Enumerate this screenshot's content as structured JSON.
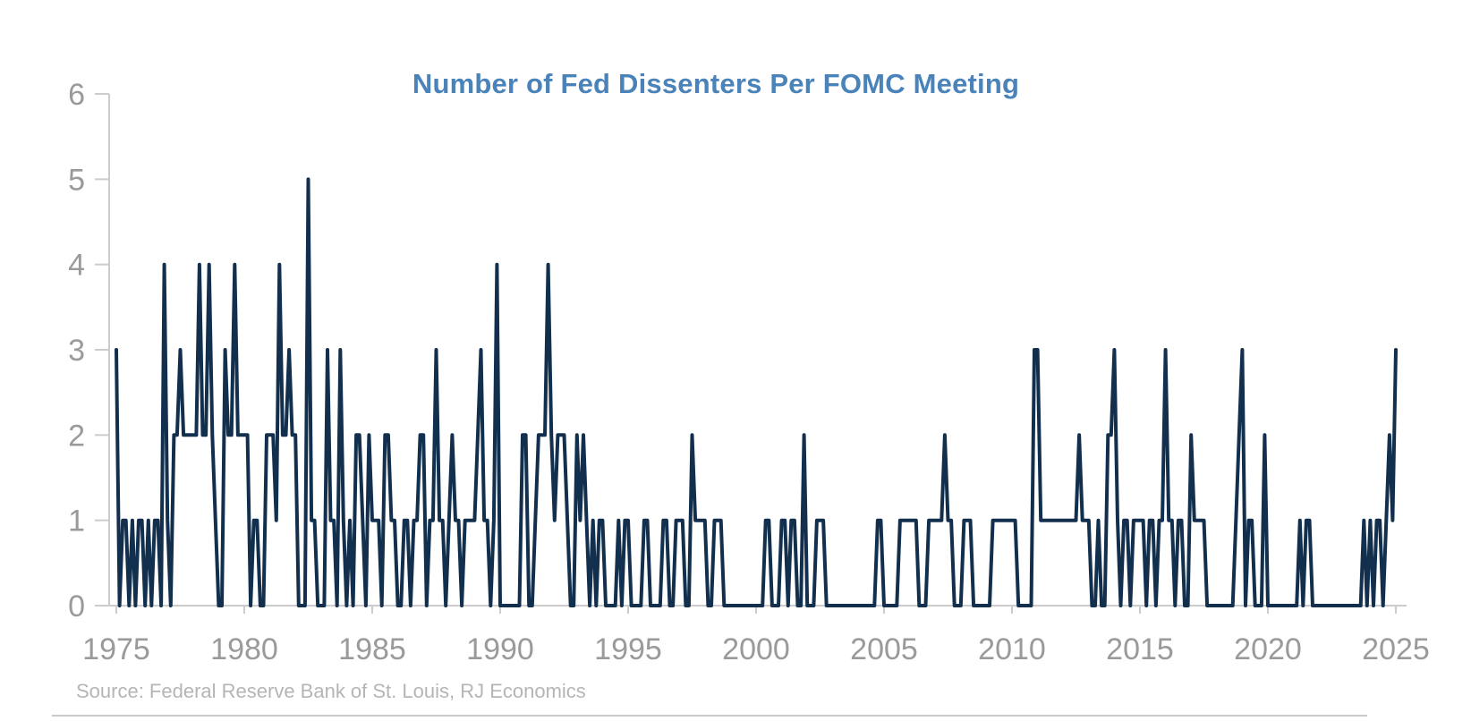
{
  "chart_data": {
    "type": "line",
    "title": "Number of Fed Dissenters Per FOMC Meeting",
    "xlabel": "",
    "ylabel": "",
    "series_name": "Fed dissenters per FOMC meeting",
    "x_ticks": [
      1975,
      1980,
      1985,
      1990,
      1995,
      2000,
      2005,
      2010,
      2015,
      2020,
      2025
    ],
    "y_ticks": [
      0,
      1,
      2,
      3,
      4,
      5,
      6
    ],
    "xlim": [
      1974.7,
      2025.4
    ],
    "ylim": [
      0,
      6
    ],
    "grid": false,
    "legend": false,
    "x_start": 1975.0,
    "x_step": 0.125,
    "values": [
      3,
      0,
      1,
      1,
      0,
      1,
      0,
      1,
      1,
      0,
      1,
      0,
      1,
      1,
      0,
      4,
      1,
      0,
      2,
      2,
      3,
      2,
      2,
      2,
      2,
      2,
      4,
      2,
      2,
      4,
      2,
      1,
      0,
      0,
      3,
      2,
      2,
      4,
      2,
      2,
      2,
      2,
      0,
      1,
      1,
      0,
      0,
      2,
      2,
      2,
      1,
      4,
      2,
      2,
      3,
      2,
      2,
      0,
      0,
      0,
      5,
      1,
      1,
      0,
      0,
      0,
      3,
      1,
      1,
      0,
      3,
      1,
      0,
      1,
      0,
      2,
      2,
      1,
      0,
      2,
      1,
      1,
      1,
      0,
      2,
      2,
      1,
      1,
      0,
      0,
      1,
      1,
      0,
      1,
      1,
      2,
      2,
      0,
      1,
      1,
      3,
      1,
      1,
      0,
      1,
      2,
      1,
      1,
      0,
      1,
      1,
      1,
      1,
      2,
      3,
      1,
      1,
      0,
      1,
      4,
      0,
      0,
      0,
      0,
      0,
      0,
      0,
      2,
      2,
      0,
      0,
      1,
      2,
      2,
      2,
      4,
      2,
      1,
      2,
      2,
      2,
      1,
      0,
      0,
      2,
      1,
      2,
      1,
      0,
      1,
      0,
      1,
      1,
      0,
      0,
      0,
      0,
      1,
      0,
      1,
      1,
      0,
      0,
      0,
      0,
      1,
      1,
      0,
      0,
      0,
      0,
      1,
      1,
      0,
      0,
      1,
      1,
      1,
      0,
      0,
      2,
      1,
      1,
      1,
      1,
      0,
      0,
      1,
      1,
      1,
      0,
      0,
      0,
      0,
      0,
      0,
      0,
      0,
      0,
      0,
      0,
      0,
      0,
      1,
      1,
      0,
      0,
      0,
      1,
      1,
      0,
      1,
      1,
      0,
      0,
      2,
      0,
      0,
      0,
      1,
      1,
      1,
      0,
      0,
      0,
      0,
      0,
      0,
      0,
      0,
      0,
      0,
      0,
      0,
      0,
      0,
      0,
      0,
      1,
      1,
      0,
      0,
      0,
      0,
      0,
      1,
      1,
      1,
      1,
      1,
      1,
      0,
      0,
      0,
      1,
      1,
      1,
      1,
      1,
      2,
      1,
      1,
      0,
      0,
      0,
      1,
      1,
      1,
      0,
      0,
      0,
      0,
      0,
      0,
      1,
      1,
      1,
      1,
      1,
      1,
      1,
      1,
      0,
      0,
      0,
      0,
      0,
      3,
      3,
      1,
      1,
      1,
      1,
      1,
      1,
      1,
      1,
      1,
      1,
      1,
      1,
      2,
      1,
      1,
      1,
      0,
      0,
      1,
      0,
      0,
      2,
      2,
      3,
      1,
      0,
      1,
      1,
      0,
      1,
      1,
      1,
      1,
      0,
      1,
      1,
      0,
      1,
      1,
      3,
      1,
      1,
      0,
      1,
      1,
      0,
      0,
      2,
      1,
      1,
      1,
      1,
      0,
      0,
      0,
      0,
      0,
      0,
      0,
      0,
      0,
      1,
      2,
      3,
      0,
      1,
      1,
      0,
      0,
      0,
      2,
      0,
      0,
      0,
      0,
      0,
      0,
      0,
      0,
      0,
      0,
      1,
      0,
      1,
      1,
      0,
      0,
      0,
      0,
      0,
      0,
      0,
      0,
      0,
      0,
      0,
      0,
      0,
      0,
      0,
      0,
      1,
      0,
      1,
      0,
      1,
      1,
      0,
      1,
      2,
      1,
      3
    ]
  },
  "colors": {
    "title": "#4a83ba",
    "line": "#122f4d",
    "axis": "#cccccc",
    "tick_label": "#9a9a9a",
    "source": "#b5b5b5"
  },
  "source": {
    "text": "Source: Federal Reserve Bank of St. Louis, RJ Economics"
  }
}
